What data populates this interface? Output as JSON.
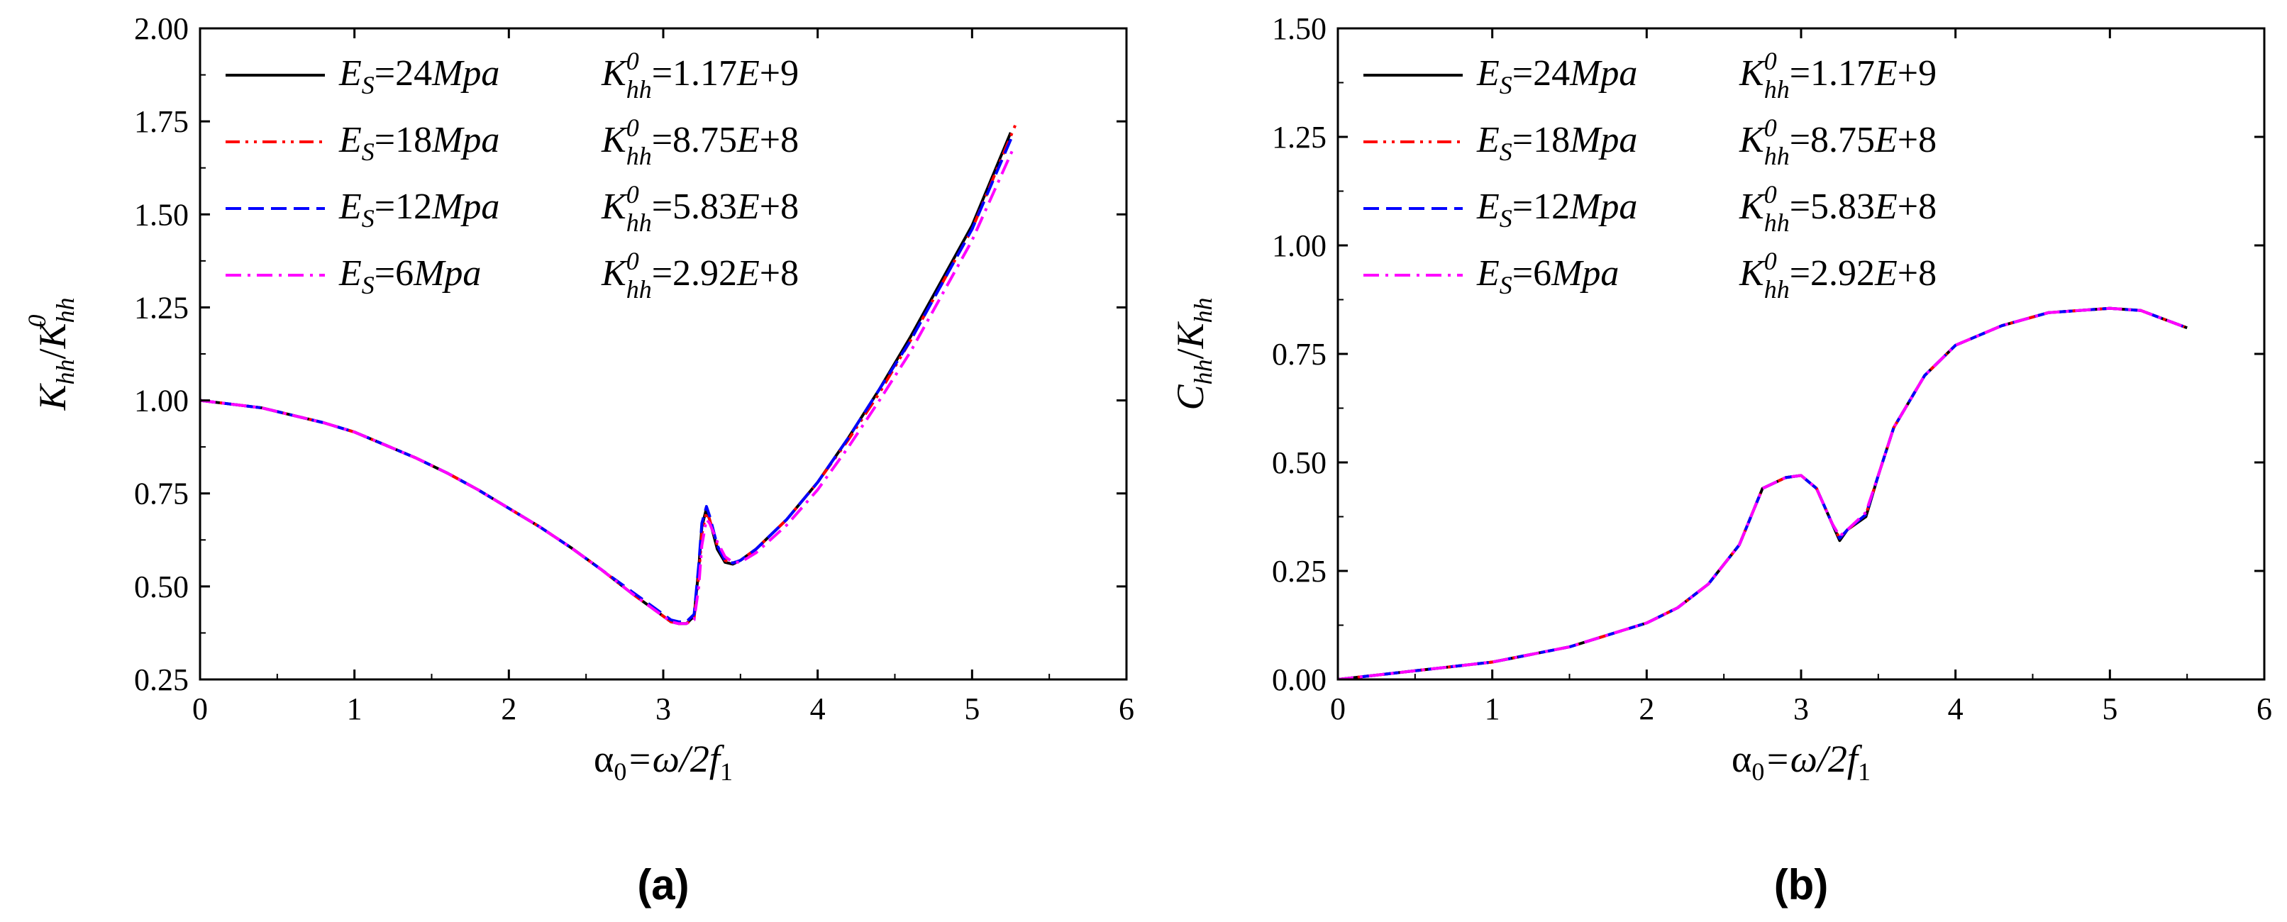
{
  "chart_data": [
    {
      "type": "line",
      "panel_label": "(a)",
      "ylabel": "Khh/Khh0",
      "ylabel_parts": {
        "main1": "K",
        "sub1": "hh",
        "slash": "/",
        "main2": "K",
        "sub2": "hh",
        "sup2": "0"
      },
      "xlabel": "α0=ω/2f1",
      "xlabel_parts": {
        "alpha": "α",
        "alpha_sub": "0",
        "rest": "=ω/2",
        "f": "f",
        "f_sub": "1"
      },
      "xlim": [
        0,
        6
      ],
      "ylim": [
        0.25,
        2.0
      ],
      "xticks": [
        "0",
        "1",
        "2",
        "3",
        "4",
        "5",
        "6"
      ],
      "yticks": [
        "0.25",
        "0.50",
        "0.75",
        "1.00",
        "1.25",
        "1.50",
        "1.75",
        "2.00"
      ],
      "legend": [
        {
          "es_main": "E",
          "es_sub": "S",
          "es_val": "=24",
          "es_unit": "Mpa",
          "k_main": "K",
          "k_sub": "hh",
          "k_sup": "0",
          "k_eq": "=1.17",
          "k_e": "E",
          "k_exp": "+9"
        },
        {
          "es_main": "E",
          "es_sub": "S",
          "es_val": "=18",
          "es_unit": "Mpa",
          "k_main": "K",
          "k_sub": "hh",
          "k_sup": "0",
          "k_eq": "=8.75",
          "k_e": "E",
          "k_exp": "+8"
        },
        {
          "es_main": "E",
          "es_sub": "S",
          "es_val": "=12",
          "es_unit": "Mpa",
          "k_main": "K",
          "k_sub": "hh",
          "k_sup": "0",
          "k_eq": "=5.83",
          "k_e": "E",
          "k_exp": "+8"
        },
        {
          "es_main": "E",
          "es_sub": "S",
          "es_val": "=6",
          "es_unit": "Mpa",
          "k_main": "K",
          "k_sub": "hh",
          "k_sup": "0",
          "k_eq": "=2.92",
          "k_e": "E",
          "k_exp": "+8"
        }
      ],
      "series": [
        {
          "name": "ES=24Mpa",
          "color": "#000000",
          "style": "solid",
          "x": [
            0,
            0.2,
            0.4,
            0.6,
            0.8,
            1.0,
            1.2,
            1.4,
            1.6,
            1.8,
            2.0,
            2.2,
            2.4,
            2.6,
            2.8,
            3.0,
            3.05,
            3.1,
            3.15,
            3.2,
            3.23,
            3.25,
            3.28,
            3.3,
            3.35,
            3.4,
            3.45,
            3.5,
            3.6,
            3.8,
            4.0,
            4.2,
            4.4,
            4.6,
            4.8,
            5.0,
            5.25
          ],
          "y": [
            1.0,
            0.99,
            0.98,
            0.96,
            0.94,
            0.915,
            0.88,
            0.845,
            0.805,
            0.76,
            0.71,
            0.66,
            0.605,
            0.545,
            0.48,
            0.42,
            0.405,
            0.4,
            0.4,
            0.42,
            0.55,
            0.66,
            0.71,
            0.68,
            0.6,
            0.565,
            0.56,
            0.57,
            0.6,
            0.68,
            0.78,
            0.9,
            1.03,
            1.17,
            1.32,
            1.47,
            1.72
          ]
        },
        {
          "name": "ES=18Mpa",
          "color": "#ff0000",
          "style": "dashdotdot",
          "x": [
            0,
            0.2,
            0.4,
            0.6,
            0.8,
            1.0,
            1.2,
            1.4,
            1.6,
            1.8,
            2.0,
            2.2,
            2.4,
            2.6,
            2.8,
            3.0,
            3.05,
            3.1,
            3.15,
            3.2,
            3.23,
            3.25,
            3.28,
            3.3,
            3.35,
            3.4,
            3.45,
            3.5,
            3.6,
            3.8,
            4.0,
            4.2,
            4.4,
            4.6,
            4.8,
            5.0,
            5.28
          ],
          "y": [
            1.0,
            0.99,
            0.98,
            0.96,
            0.94,
            0.915,
            0.88,
            0.845,
            0.805,
            0.76,
            0.71,
            0.66,
            0.605,
            0.545,
            0.48,
            0.42,
            0.405,
            0.4,
            0.4,
            0.415,
            0.53,
            0.64,
            0.7,
            0.68,
            0.61,
            0.57,
            0.563,
            0.57,
            0.6,
            0.68,
            0.78,
            0.895,
            1.02,
            1.16,
            1.31,
            1.46,
            1.74
          ]
        },
        {
          "name": "ES=12Mpa",
          "color": "#0000ff",
          "style": "dashed",
          "x": [
            0,
            0.2,
            0.4,
            0.6,
            0.8,
            1.0,
            1.2,
            1.4,
            1.6,
            1.8,
            2.0,
            2.2,
            2.4,
            2.6,
            2.8,
            3.0,
            3.05,
            3.1,
            3.15,
            3.2,
            3.23,
            3.25,
            3.28,
            3.3,
            3.35,
            3.4,
            3.45,
            3.5,
            3.6,
            3.8,
            4.0,
            4.2,
            4.4,
            4.6,
            4.8,
            5.0,
            5.26
          ],
          "y": [
            1.0,
            0.99,
            0.98,
            0.96,
            0.94,
            0.915,
            0.88,
            0.845,
            0.805,
            0.76,
            0.71,
            0.66,
            0.605,
            0.545,
            0.485,
            0.425,
            0.41,
            0.405,
            0.405,
            0.425,
            0.56,
            0.67,
            0.715,
            0.69,
            0.61,
            0.57,
            0.563,
            0.57,
            0.6,
            0.68,
            0.78,
            0.9,
            1.03,
            1.16,
            1.31,
            1.46,
            1.71
          ]
        },
        {
          "name": "ES=6Mpa",
          "color": "#ff00ff",
          "style": "dashdot",
          "x": [
            0,
            0.2,
            0.4,
            0.6,
            0.8,
            1.0,
            1.2,
            1.4,
            1.6,
            1.8,
            2.0,
            2.2,
            2.4,
            2.6,
            2.8,
            3.0,
            3.05,
            3.1,
            3.15,
            3.2,
            3.23,
            3.25,
            3.28,
            3.3,
            3.35,
            3.4,
            3.45,
            3.5,
            3.6,
            3.8,
            4.0,
            4.2,
            4.4,
            4.6,
            4.8,
            5.0,
            5.27
          ],
          "y": [
            1.0,
            0.99,
            0.98,
            0.96,
            0.94,
            0.915,
            0.88,
            0.845,
            0.805,
            0.76,
            0.71,
            0.66,
            0.605,
            0.545,
            0.48,
            0.42,
            0.405,
            0.4,
            0.4,
            0.41,
            0.5,
            0.61,
            0.68,
            0.67,
            0.62,
            0.58,
            0.565,
            0.565,
            0.59,
            0.665,
            0.76,
            0.875,
            1.0,
            1.13,
            1.28,
            1.43,
            1.68
          ]
        }
      ]
    },
    {
      "type": "line",
      "panel_label": "(b)",
      "ylabel": "Chh/Khh",
      "ylabel_parts": {
        "main1": "C",
        "sub1": "hh",
        "slash": "/",
        "main2": "K",
        "sub2": "hh"
      },
      "xlabel": "α0=ω/2f1",
      "xlabel_parts": {
        "alpha": "α",
        "alpha_sub": "0",
        "rest": "=ω/2",
        "f": "f",
        "f_sub": "1"
      },
      "xlim": [
        0,
        6
      ],
      "ylim": [
        0.0,
        1.5
      ],
      "xticks": [
        "0",
        "1",
        "2",
        "3",
        "4",
        "5",
        "6"
      ],
      "yticks": [
        "0.00",
        "0.25",
        "0.50",
        "0.75",
        "1.00",
        "1.25",
        "1.50"
      ],
      "legend": [
        {
          "es_main": "E",
          "es_sub": "S",
          "es_val": "=24",
          "es_unit": "Mpa",
          "k_main": "K",
          "k_sub": "hh",
          "k_sup": "0",
          "k_eq": "=1.17",
          "k_e": "E",
          "k_exp": "+9"
        },
        {
          "es_main": "E",
          "es_sub": "S",
          "es_val": "=18",
          "es_unit": "Mpa",
          "k_main": "K",
          "k_sub": "hh",
          "k_sup": "0",
          "k_eq": "=8.75",
          "k_e": "E",
          "k_exp": "+8"
        },
        {
          "es_main": "E",
          "es_sub": "S",
          "es_val": "=12",
          "es_unit": "Mpa",
          "k_main": "K",
          "k_sub": "hh",
          "k_sup": "0",
          "k_eq": "=5.83",
          "k_e": "E",
          "k_exp": "+8"
        },
        {
          "es_main": "E",
          "es_sub": "S",
          "es_val": "=6",
          "es_unit": "Mpa",
          "k_main": "K",
          "k_sub": "hh",
          "k_sup": "0",
          "k_eq": "=2.92",
          "k_e": "E",
          "k_exp": "+8"
        }
      ],
      "series": [
        {
          "name": "ES=24Mpa",
          "color": "#000000",
          "style": "solid",
          "x": [
            0,
            0.2,
            0.5,
            1.0,
            1.5,
            2.0,
            2.2,
            2.4,
            2.6,
            2.75,
            2.9,
            3.0,
            3.1,
            3.2,
            3.25,
            3.3,
            3.42,
            3.5,
            3.6,
            3.8,
            4.0,
            4.3,
            4.6,
            5.0,
            5.2,
            5.5
          ],
          "y": [
            0.0,
            0.008,
            0.02,
            0.04,
            0.075,
            0.13,
            0.165,
            0.22,
            0.31,
            0.44,
            0.465,
            0.47,
            0.44,
            0.36,
            0.32,
            0.345,
            0.375,
            0.47,
            0.58,
            0.7,
            0.77,
            0.815,
            0.845,
            0.855,
            0.85,
            0.81
          ]
        },
        {
          "name": "ES=18Mpa",
          "color": "#ff0000",
          "style": "dashdotdot",
          "x": [
            0,
            0.2,
            0.5,
            1.0,
            1.5,
            2.0,
            2.2,
            2.4,
            2.6,
            2.75,
            2.9,
            3.0,
            3.1,
            3.2,
            3.25,
            3.3,
            3.42,
            3.5,
            3.6,
            3.8,
            4.0,
            4.3,
            4.6,
            5.0,
            5.2,
            5.5
          ],
          "y": [
            0.0,
            0.008,
            0.02,
            0.04,
            0.075,
            0.13,
            0.165,
            0.22,
            0.31,
            0.44,
            0.465,
            0.47,
            0.44,
            0.36,
            0.325,
            0.345,
            0.38,
            0.47,
            0.58,
            0.7,
            0.77,
            0.815,
            0.845,
            0.855,
            0.85,
            0.81
          ]
        },
        {
          "name": "ES=12Mpa",
          "color": "#0000ff",
          "style": "dashed",
          "x": [
            0,
            0.2,
            0.5,
            1.0,
            1.5,
            2.0,
            2.2,
            2.4,
            2.6,
            2.75,
            2.9,
            3.0,
            3.1,
            3.2,
            3.25,
            3.3,
            3.42,
            3.5,
            3.6,
            3.8,
            4.0,
            4.3,
            4.6,
            5.0,
            5.2,
            5.5
          ],
          "y": [
            0.0,
            0.008,
            0.02,
            0.04,
            0.075,
            0.13,
            0.165,
            0.22,
            0.31,
            0.44,
            0.465,
            0.47,
            0.44,
            0.36,
            0.325,
            0.345,
            0.38,
            0.47,
            0.58,
            0.7,
            0.77,
            0.815,
            0.845,
            0.855,
            0.85,
            0.81
          ]
        },
        {
          "name": "ES=6Mpa",
          "color": "#ff00ff",
          "style": "dashdot",
          "x": [
            0,
            0.2,
            0.5,
            1.0,
            1.5,
            2.0,
            2.2,
            2.4,
            2.6,
            2.75,
            2.9,
            3.0,
            3.1,
            3.2,
            3.25,
            3.3,
            3.42,
            3.5,
            3.6,
            3.8,
            4.0,
            4.3,
            4.6,
            5.0,
            5.2,
            5.5
          ],
          "y": [
            0.0,
            0.008,
            0.02,
            0.04,
            0.075,
            0.13,
            0.165,
            0.22,
            0.31,
            0.44,
            0.465,
            0.47,
            0.44,
            0.36,
            0.33,
            0.345,
            0.385,
            0.47,
            0.58,
            0.7,
            0.77,
            0.815,
            0.845,
            0.855,
            0.85,
            0.81
          ]
        }
      ]
    }
  ]
}
